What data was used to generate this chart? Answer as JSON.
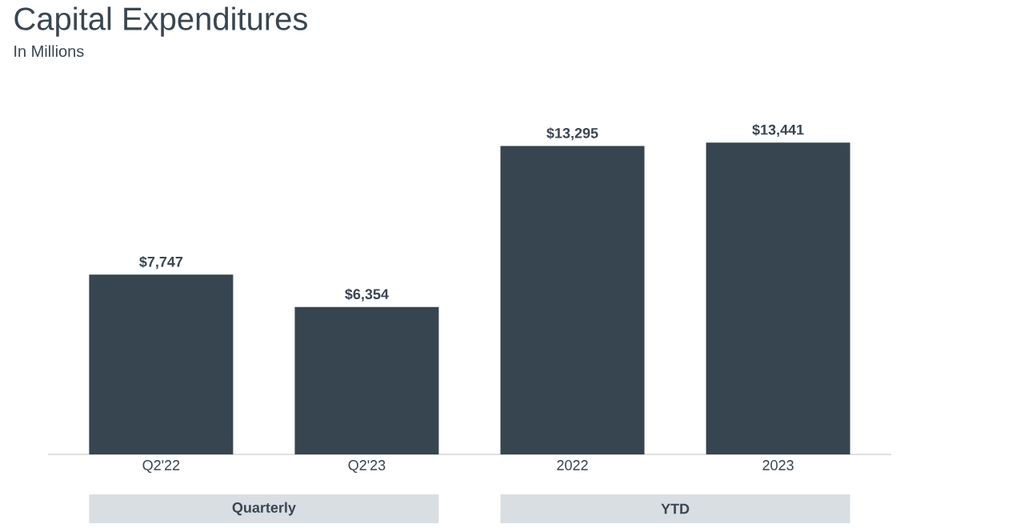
{
  "chart_data": {
    "type": "bar",
    "title": "Capital Expenditures",
    "subtitle": "In Millions",
    "categories": [
      "Q2'22",
      "Q2'23",
      "2022",
      "2023"
    ],
    "values": [
      7747,
      6354,
      13295,
      13441
    ],
    "value_labels": [
      "$7,747",
      "$6,354",
      "$13,295",
      "$13,441"
    ],
    "color": "#36454f",
    "annotations": [
      "Quarterly",
      "YTD"
    ]
  }
}
